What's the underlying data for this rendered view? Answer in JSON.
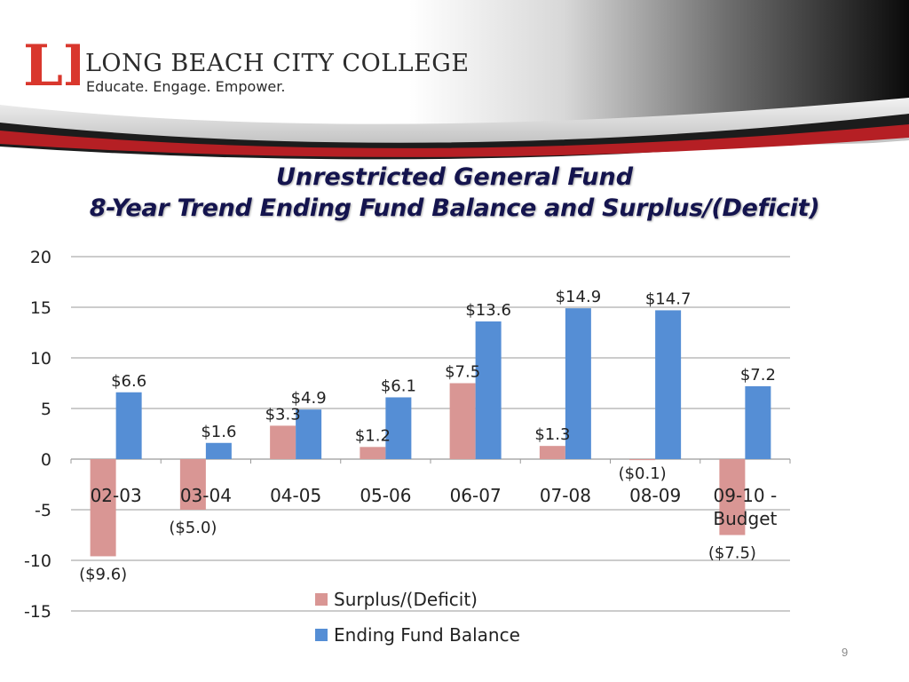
{
  "brand": {
    "name": "LONG BEACH CITY COLLEGE",
    "tagline": "Educate. Engage. Empower.",
    "logo_letters": "LB",
    "red": "#d9372d"
  },
  "page_number": "9",
  "chart_data": {
    "type": "bar",
    "title": "Unrestricted General Fund",
    "subtitle": "8-Year Trend Ending Fund Balance and Surplus/(Deficit)",
    "categories": [
      "02-03",
      "03-04",
      "04-05",
      "05-06",
      "06-07",
      "07-08",
      "08-09",
      "09-10 - Budget"
    ],
    "series": [
      {
        "name": "Surplus/(Deficit)",
        "color": "#d99694",
        "values": [
          -9.6,
          -5.0,
          3.3,
          1.2,
          7.5,
          1.3,
          -0.1,
          -7.5
        ],
        "labels": [
          "($9.6)",
          "($5.0)",
          "$3.3",
          "$1.2",
          "$7.5",
          "$1.3",
          "($0.1)",
          "($7.5)"
        ]
      },
      {
        "name": "Ending Fund Balance",
        "color": "#558ed5",
        "values": [
          6.6,
          1.6,
          4.9,
          6.1,
          13.6,
          14.9,
          14.7,
          7.2
        ],
        "labels": [
          "$6.6",
          "$1.6",
          "$4.9",
          "$6.1",
          "$13.6",
          "$14.9",
          "$14.7",
          "$7.2"
        ]
      }
    ],
    "ylim": [
      -15,
      20
    ],
    "yticks": [
      "20",
      "15",
      "10",
      "5",
      "0",
      "-5",
      "-10",
      "-15"
    ],
    "grid": true,
    "legend": "bottom"
  }
}
